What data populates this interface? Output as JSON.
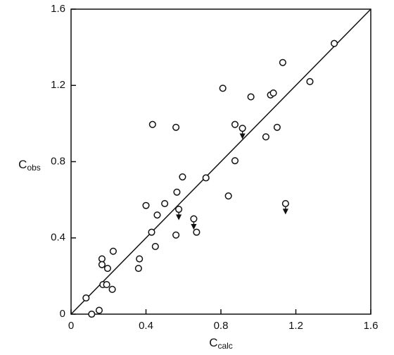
{
  "chart_data": {
    "type": "scatter",
    "xlabel": {
      "symbol": "C",
      "subscript": "calc"
    },
    "ylabel": {
      "symbol": "C",
      "subscript": "obs"
    },
    "xlim": [
      0,
      1.6
    ],
    "ylim": [
      0,
      1.6
    ],
    "xticks": [
      0,
      0.4,
      0.8,
      1.2,
      1.6
    ],
    "yticks": [
      0,
      0.4,
      0.8,
      1.2,
      1.6
    ],
    "identity_line": true,
    "series": [
      {
        "color": "#111111",
        "marker": "circle",
        "x": [
          0.08,
          0.11,
          0.15,
          0.165,
          0.165,
          0.17,
          0.19,
          0.195,
          0.22,
          0.225,
          0.36,
          0.365,
          0.4,
          0.43,
          0.435,
          0.45,
          0.46,
          0.5,
          0.56,
          0.56,
          0.565,
          0.595,
          0.67,
          0.72,
          0.81,
          0.84,
          0.875,
          0.875,
          0.96,
          1.04,
          1.065,
          1.08,
          1.1,
          1.13,
          1.275,
          1.405
        ],
        "values": [
          0.085,
          0,
          0.02,
          0.29,
          0.26,
          0.155,
          0.155,
          0.24,
          0.13,
          0.33,
          0.24,
          0.29,
          0.57,
          0.43,
          0.995,
          0.355,
          0.52,
          0.58,
          0.98,
          0.415,
          0.64,
          0.72,
          0.43,
          0.715,
          1.185,
          0.62,
          0.995,
          0.805,
          1.14,
          0.93,
          1.15,
          1.16,
          0.98,
          1.32,
          1.22,
          1.42
        ]
      },
      {
        "color": "#111111",
        "marker": "circle-arrow",
        "x": [
          0.575,
          0.655,
          0.915,
          1.145
        ],
        "values": [
          0.55,
          0.5,
          0.975,
          0.58
        ]
      }
    ]
  }
}
